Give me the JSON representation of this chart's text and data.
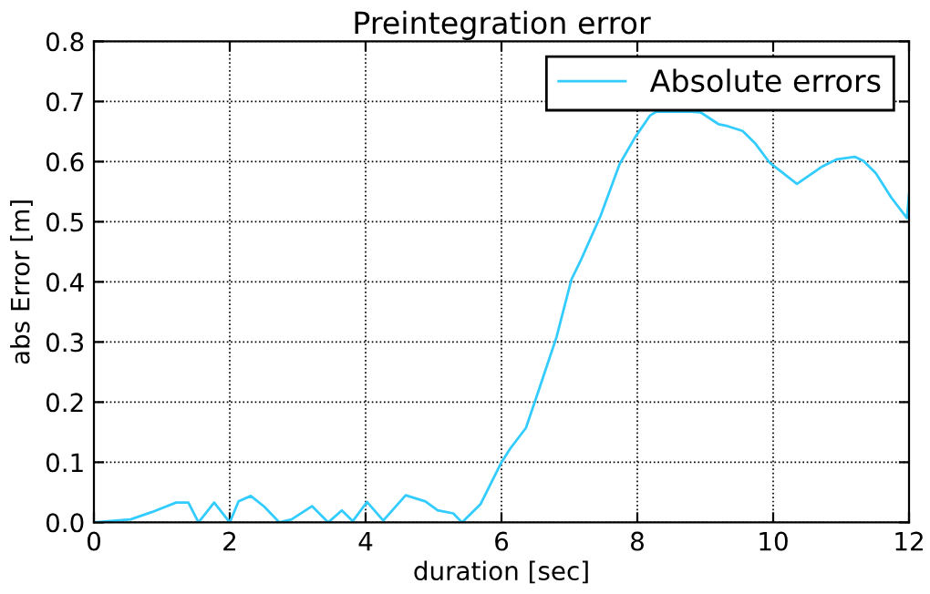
{
  "chart_data": {
    "type": "line",
    "title": "Preintegration error",
    "xlabel": "duration [sec]",
    "ylabel": "abs Error [m]",
    "xlim": [
      0,
      12
    ],
    "ylim": [
      0,
      0.8
    ],
    "xticks": [
      0,
      2,
      4,
      6,
      8,
      10,
      12
    ],
    "yticks": [
      {
        "value": 0,
        "label": "0.0"
      },
      0.1,
      0.2,
      0.3,
      0.4,
      0.5,
      0.6,
      0.7,
      0.8
    ],
    "grid": true,
    "legend": "top right",
    "line_style": "solid",
    "marker": "none",
    "series": [
      {
        "name": "Absolute errors",
        "color": "#33ccff",
        "x": [
          0,
          0.54,
          0.85,
          1.21,
          1.39,
          1.54,
          1.77,
          2.0,
          2.13,
          2.31,
          2.51,
          2.73,
          2.91,
          3.21,
          3.45,
          3.65,
          3.81,
          4.02,
          4.26,
          4.59,
          4.88,
          5.06,
          5.29,
          5.42,
          5.69,
          6.0,
          6.13,
          6.36,
          6.54,
          6.81,
          7.03,
          7.16,
          7.46,
          7.74,
          7.97,
          8.19,
          8.28,
          8.5,
          8.8,
          8.93,
          9.2,
          9.33,
          9.55,
          9.73,
          9.95,
          10.35,
          10.71,
          10.94,
          11.2,
          11.33,
          11.51,
          11.74,
          11.97,
          12.0
        ],
        "values": [
          0.0,
          0.005,
          0.017,
          0.033,
          0.033,
          0.0,
          0.033,
          0.0,
          0.035,
          0.044,
          0.026,
          0.0,
          0.005,
          0.027,
          0.0,
          0.02,
          0.002,
          0.034,
          0.003,
          0.045,
          0.035,
          0.02,
          0.015,
          0.0,
          0.03,
          0.1,
          0.123,
          0.157,
          0.217,
          0.308,
          0.404,
          0.434,
          0.51,
          0.596,
          0.641,
          0.677,
          0.683,
          0.683,
          0.683,
          0.682,
          0.662,
          0.659,
          0.651,
          0.631,
          0.598,
          0.563,
          0.591,
          0.604,
          0.608,
          0.601,
          0.581,
          0.54,
          0.506,
          0.545
        ]
      }
    ]
  }
}
